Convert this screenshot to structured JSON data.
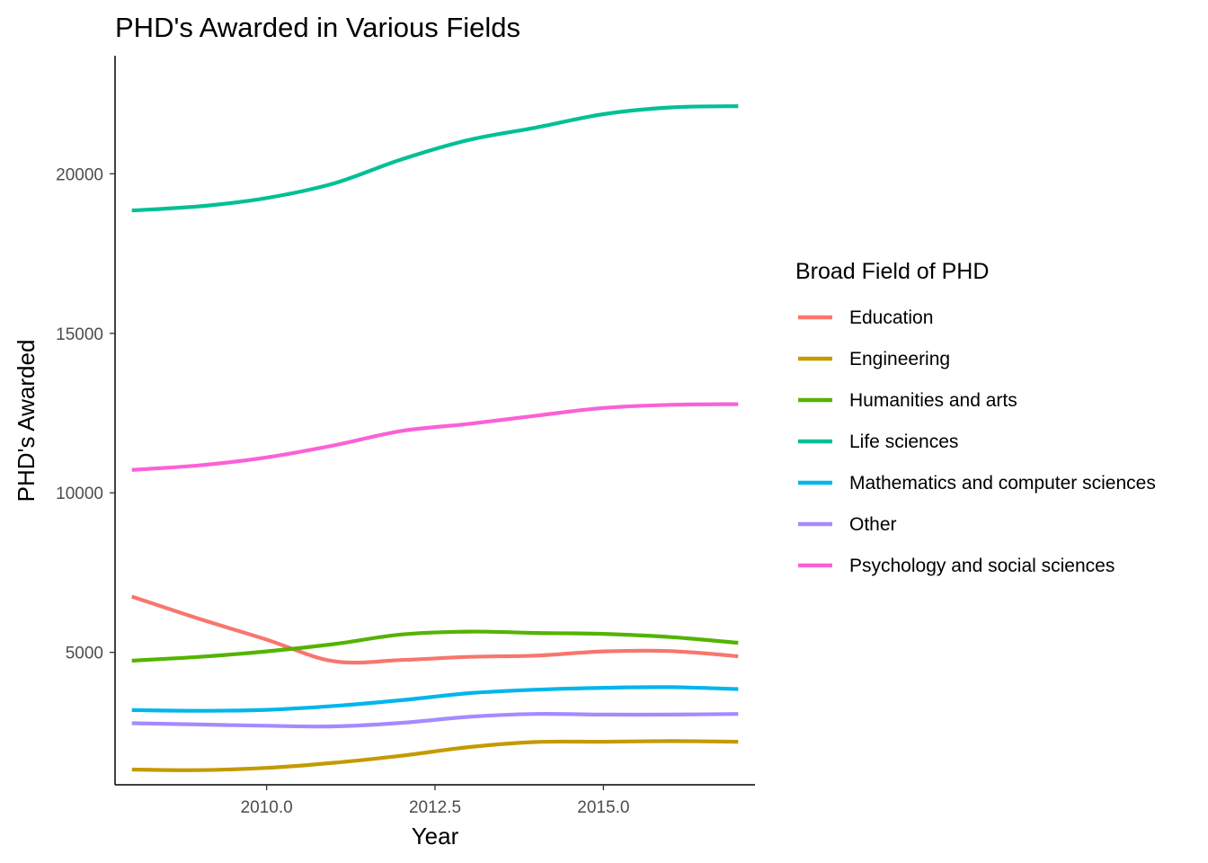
{
  "chart_data": {
    "type": "line",
    "title": "PHD's Awarded in Various Fields",
    "xlabel": "Year",
    "ylabel": "PHD's Awarded",
    "xlim": [
      2007.75,
      2017.25
    ],
    "ylim": [
      850,
      23700
    ],
    "x_ticks": [
      {
        "value": 2010,
        "label": "2010.0"
      },
      {
        "value": 2012.5,
        "label": "2012.5"
      },
      {
        "value": 2015,
        "label": "2015.0"
      }
    ],
    "y_ticks": [
      {
        "value": 5000,
        "label": "5000"
      },
      {
        "value": 10000,
        "label": "10000"
      },
      {
        "value": 15000,
        "label": "15000"
      },
      {
        "value": 20000,
        "label": "20000"
      }
    ],
    "grid": false,
    "legend": {
      "title": "Broad Field of PHD",
      "position": "right"
    },
    "x": [
      2008,
      2009,
      2010,
      2011,
      2012,
      2013,
      2014,
      2015,
      2016,
      2017
    ],
    "series": [
      {
        "name": "Education",
        "color": "#F8766D",
        "values": [
          6750,
          6050,
          5400,
          4720,
          4760,
          4860,
          4900,
          5030,
          5040,
          4880
        ]
      },
      {
        "name": "Engineering",
        "color": "#C49A00",
        "values": [
          1330,
          1310,
          1380,
          1540,
          1760,
          2030,
          2190,
          2200,
          2220,
          2200
        ]
      },
      {
        "name": "Humanities and arts",
        "color": "#53B400",
        "values": [
          4740,
          4860,
          5030,
          5260,
          5560,
          5650,
          5610,
          5580,
          5480,
          5300
        ]
      },
      {
        "name": "Life sciences",
        "color": "#00C094",
        "values": [
          18850,
          18980,
          19240,
          19700,
          20450,
          21060,
          21450,
          21870,
          22080,
          22120
        ]
      },
      {
        "name": "Mathematics and computer sciences",
        "color": "#00B6EB",
        "values": [
          3190,
          3170,
          3200,
          3320,
          3500,
          3720,
          3830,
          3890,
          3910,
          3850
        ]
      },
      {
        "name": "Other",
        "color": "#A58AFF",
        "values": [
          2780,
          2740,
          2700,
          2680,
          2790,
          2980,
          3070,
          3050,
          3050,
          3070
        ]
      },
      {
        "name": "Psychology and social sciences",
        "color": "#FB61D7",
        "values": [
          10720,
          10860,
          11110,
          11490,
          11940,
          12160,
          12420,
          12660,
          12760,
          12780
        ]
      }
    ]
  }
}
